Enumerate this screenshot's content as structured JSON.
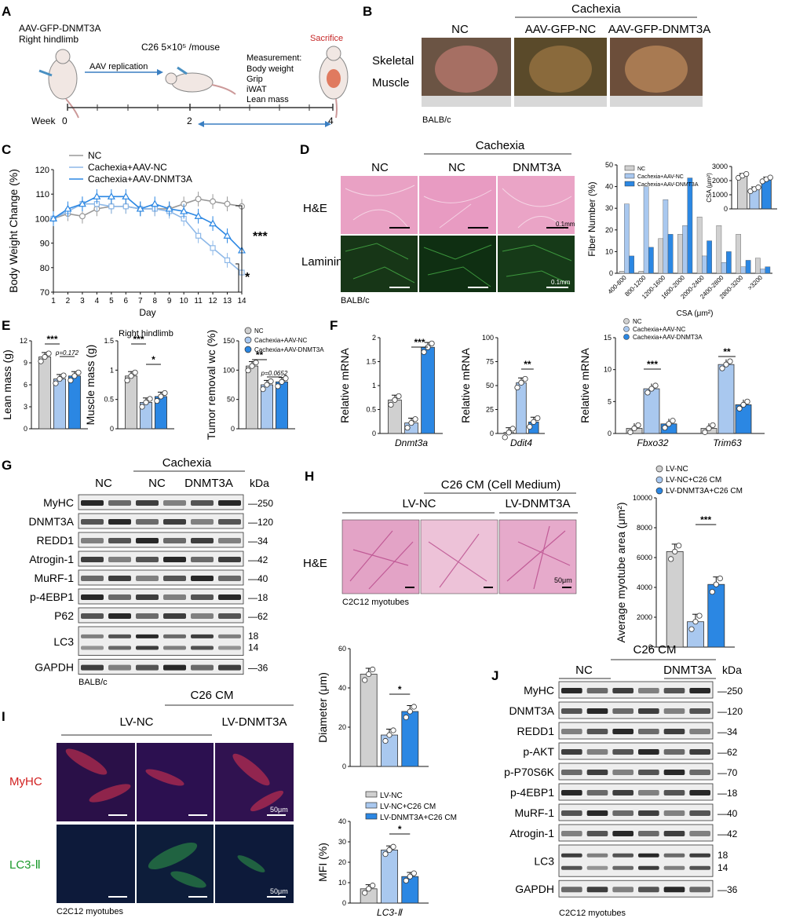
{
  "colors": {
    "nc": "#d0d0d0",
    "aav_nc": "#a9c8ef",
    "dnmt3a": "#2b87e3",
    "stroke": "#333333",
    "red": "#d11f1f",
    "green": "#1b9a2b"
  },
  "panels": {
    "A": {
      "letter": "A",
      "line1": "AAV-GFP-DNMT3A",
      "line2": "Right hindlimb",
      "c26": "C26 5×10⁵ /mouse",
      "aav_replication": "AAV replication",
      "measure_title": "Measurement:",
      "measure_items": [
        "Body weight",
        "Grip",
        "iWAT",
        "Lean mass"
      ],
      "sacrifice": "Sacrifice",
      "week_label": "Week",
      "weeks": [
        "0",
        "2",
        "4"
      ]
    },
    "B": {
      "letter": "B",
      "cachexia": "Cachexia",
      "cols": [
        "NC",
        "AAV-GFP-NC",
        "AAV-GFP-DNMT3A"
      ],
      "row1": "Skeletal",
      "row2": "Muscle",
      "strain": "BALB/c"
    },
    "C": {
      "letter": "C",
      "legend": [
        "NC",
        "Cachexia+AAV-NC",
        "Cachexia+AAV-DNMT3A"
      ],
      "sig1": "***",
      "sig2": "*"
    },
    "D": {
      "letter": "D",
      "cachexia": "Cachexia",
      "cols": [
        "NC",
        "NC",
        "DNMT3A"
      ],
      "rows": [
        "H&E",
        "Laminin"
      ],
      "scale1": "0.1mm",
      "scale2": "0.1mm",
      "strain": "BALB/c",
      "legend": [
        "NC",
        "Cachexia+AAV-NC",
        "Cachexia+AAV-DNMT3A"
      ],
      "inset_sig": [
        "***",
        "*"
      ]
    },
    "E": {
      "letter": "E",
      "legend": [
        "NC",
        "Cachexia+AAV-NC",
        "Cachexia+AAV-DNMT3A"
      ]
    },
    "F": {
      "letter": "F",
      "legend": [
        "NC",
        "Cachexia+AAV-NC",
        "Cachexia+AAV-DNMT3A"
      ]
    },
    "G": {
      "letter": "G",
      "cachexia": "Cachexia",
      "groups": [
        "NC",
        "NC",
        "DNMT3A"
      ],
      "kda": "kDa",
      "bands": [
        "MyHC",
        "DNMT3A",
        "REDD1",
        "Atrogin-1",
        "MuRF-1",
        "p-4EBP1",
        "P62",
        "LC3",
        "GAPDH"
      ],
      "sizes": [
        "250",
        "120",
        "34",
        "42",
        "40",
        "18",
        "62",
        "18",
        "14",
        "36"
      ],
      "strain": "BALB/c"
    },
    "H": {
      "letter": "H",
      "c26": "C26 CM (Cell Medium)",
      "cols": [
        "LV-NC",
        "LV-DNMT3A"
      ],
      "row": "H&E",
      "scale": "50μm",
      "cells": "C2C12 myotubes",
      "legend": [
        "LV-NC",
        "LV-NC+C26 CM",
        "LV-DNMT3A+C26 CM"
      ]
    },
    "I": {
      "letter": "I",
      "c26": "C26 CM",
      "cols": [
        "LV-NC",
        "LV-DNMT3A"
      ],
      "rows": [
        "MyHC",
        "LC3-Ⅱ"
      ],
      "scale1": "50μm",
      "scale2": "50μm",
      "cells": "C2C12 myotubes",
      "legend": [
        "LV-NC",
        "LV-NC+C26 CM",
        "LV-DNMT3A+C26 CM"
      ]
    },
    "J": {
      "letter": "J",
      "c26": "C26 CM",
      "groups": [
        "NC",
        "DNMT3A"
      ],
      "kda": "kDa",
      "bands": [
        "MyHC",
        "DNMT3A",
        "REDD1",
        "p-AKT",
        "p-P70S6K",
        "p-4EBP1",
        "MuRF-1",
        "Atrogin-1",
        "LC3",
        "GAPDH"
      ],
      "sizes": [
        "250",
        "120",
        "34",
        "62",
        "70",
        "18",
        "40",
        "42",
        "18",
        "14",
        "36"
      ],
      "cells": "C2C12 myotubes"
    }
  },
  "chart_data": [
    {
      "id": "C",
      "type": "line",
      "xlabel": "Day",
      "ylabel": "Body Weight Change (%)",
      "xlim": [
        1,
        14
      ],
      "ylim": [
        70,
        120
      ],
      "x": [
        1,
        2,
        3,
        4,
        5,
        6,
        7,
        8,
        9,
        10,
        11,
        12,
        13,
        14
      ],
      "series": [
        {
          "name": "NC",
          "values": [
            100,
            102,
            101,
            104,
            105,
            105,
            104,
            104,
            104,
            106,
            108,
            107,
            106,
            105
          ]
        },
        {
          "name": "Cachexia+AAV-NC",
          "values": [
            100,
            103,
            106,
            106,
            105,
            105,
            104,
            104,
            103,
            100,
            93,
            88,
            83,
            78
          ]
        },
        {
          "name": "Cachexia+AAV-DNMT3A",
          "values": [
            100,
            104,
            106,
            109,
            109,
            109,
            104,
            106,
            104,
            103,
            101,
            98,
            93,
            87
          ]
        }
      ]
    },
    {
      "id": "D",
      "type": "bar",
      "xlabel": "CSA (μm²)",
      "ylabel": "Fiber Number (%)",
      "ylim": [
        0,
        50
      ],
      "categories": [
        "400-800",
        "800-1200",
        "1200-1600",
        "1600-2000",
        "2000-2400",
        "2400-2800",
        "2800-3200",
        ">3200"
      ],
      "series": [
        {
          "name": "NC",
          "values": [
            1,
            1,
            16,
            18,
            26,
            22,
            18,
            7
          ]
        },
        {
          "name": "Cachexia+AAV-NC",
          "values": [
            32,
            40,
            34,
            22,
            8,
            5,
            3,
            2
          ]
        },
        {
          "name": "Cachexia+AAV-DNMT3A",
          "values": [
            8,
            12,
            18,
            44,
            15,
            10,
            6,
            3
          ]
        }
      ]
    },
    {
      "id": "D-inset",
      "type": "bar",
      "ylabel": "CSA (μm²)",
      "ylim": [
        0,
        3000
      ],
      "categories": [
        "NC",
        "Cachexia+AAV-NC",
        "Cachexia+AAV-DNMT3A"
      ],
      "values": [
        2350,
        1400,
        2100
      ]
    },
    {
      "id": "E1",
      "type": "bar",
      "ylabel": "Lean mass (g)",
      "ylim": [
        0,
        12
      ],
      "categories": [
        "NC",
        "Cachexia+AAV-NC",
        "Cachexia+AAV-DNMT3A"
      ],
      "values": [
        9.8,
        6.8,
        7.2
      ],
      "annotations": [
        "***",
        "p=0.172"
      ]
    },
    {
      "id": "E2",
      "type": "bar",
      "title": "Right hindlimb",
      "ylabel": "Muscle mass (g)",
      "ylim": [
        0,
        1.5
      ],
      "categories": [
        "NC",
        "Cachexia+AAV-NC",
        "Cachexia+AAV-DNMT3A"
      ],
      "values": [
        0.9,
        0.45,
        0.55
      ],
      "annotations": [
        "***",
        "*"
      ]
    },
    {
      "id": "E3",
      "type": "bar",
      "ylabel": "Tumor removal wc (%)",
      "ylim": [
        0,
        150
      ],
      "categories": [
        "NC",
        "Cachexia+AAV-NC",
        "Cachexia+AAV-DNMT3A"
      ],
      "values": [
        107,
        75,
        80
      ],
      "annotations": [
        "**",
        "p=0.0652"
      ]
    },
    {
      "id": "F1",
      "type": "bar",
      "xlabel": "Dnmt3a",
      "ylabel": "Relative mRNA",
      "ylim": [
        0,
        2.0
      ],
      "categories": [
        "NC",
        "Cachexia+AAV-NC",
        "Cachexia+AAV-DNMT3A"
      ],
      "values": [
        0.7,
        0.22,
        1.8
      ],
      "annotations": [
        "***"
      ]
    },
    {
      "id": "F2",
      "type": "bar",
      "xlabel": "Ddit4",
      "ylabel": "Relative mRNA",
      "ylim": [
        0,
        100
      ],
      "categories": [
        "NC",
        "Cachexia+AAV-NC",
        "Cachexia+AAV-DNMT3A"
      ],
      "values": [
        1,
        53,
        12
      ],
      "annotations": [
        "**"
      ]
    },
    {
      "id": "F3",
      "type": "bar",
      "ylabel": "Relative mRNA",
      "ylim": [
        0,
        15
      ],
      "categories": [
        "Fbxo32",
        "Trim63"
      ],
      "series": [
        {
          "name": "NC",
          "values": [
            0.8,
            0.8
          ]
        },
        {
          "name": "Cachexia+AAV-NC",
          "values": [
            7,
            10.8
          ]
        },
        {
          "name": "Cachexia+AAV-DNMT3A",
          "values": [
            1.5,
            4.5
          ]
        }
      ],
      "annotations": [
        "***",
        "**"
      ]
    },
    {
      "id": "H",
      "type": "bar",
      "ylabel": "Average myotube area (μm²)",
      "ylim": [
        0,
        10000
      ],
      "categories": [
        "LV-NC",
        "LV-NC+C26 CM",
        "LV-DNMT3A+C26 CM"
      ],
      "values": [
        6400,
        1700,
        4200
      ],
      "annotations": [
        "***"
      ]
    },
    {
      "id": "I1",
      "type": "bar",
      "ylabel": "Diameter (μm)",
      "ylim": [
        0,
        60
      ],
      "categories": [
        "LV-NC",
        "LV-NC+C26 CM",
        "LV-DNMT3A+C26 CM"
      ],
      "values": [
        47,
        16,
        28
      ],
      "annotations": [
        "*"
      ]
    },
    {
      "id": "I2",
      "type": "bar",
      "xlabel": "LC3-Ⅱ",
      "ylabel": "MFI (%)",
      "ylim": [
        0,
        40
      ],
      "categories": [
        "LV-NC",
        "LV-NC+C26 CM",
        "LV-DNMT3A+C26 CM"
      ],
      "values": [
        7,
        26,
        13
      ],
      "annotations": [
        "*"
      ]
    }
  ]
}
